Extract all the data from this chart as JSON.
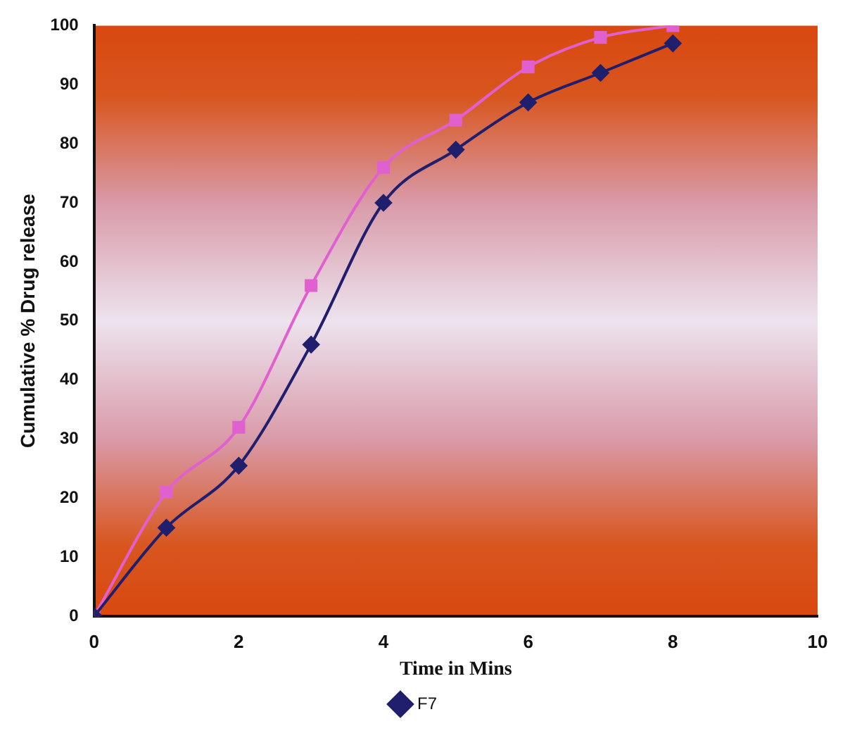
{
  "chart_data": {
    "type": "line",
    "xlabel": "Time in Mins",
    "ylabel": "Cumulative % Drug release",
    "xlim": [
      0,
      10
    ],
    "xticks": [
      0,
      2,
      4,
      6,
      8,
      10
    ],
    "ylim": [
      0,
      100
    ],
    "yticks": [
      0,
      10,
      20,
      30,
      40,
      50,
      60,
      70,
      80,
      90,
      100
    ],
    "grid": false,
    "legend": "bottom",
    "x": [
      0,
      1,
      2,
      3,
      4,
      5,
      6,
      7,
      8
    ],
    "series": [
      {
        "name": "F7",
        "color": "#1f1f6e",
        "marker": "diamond",
        "values": [
          0,
          15,
          25.5,
          46,
          70,
          79,
          87,
          92,
          97
        ]
      },
      {
        "color": "#e060d0",
        "marker": "square",
        "values": [
          0,
          21,
          32,
          56,
          76,
          84,
          93,
          98,
          100
        ]
      }
    ]
  }
}
